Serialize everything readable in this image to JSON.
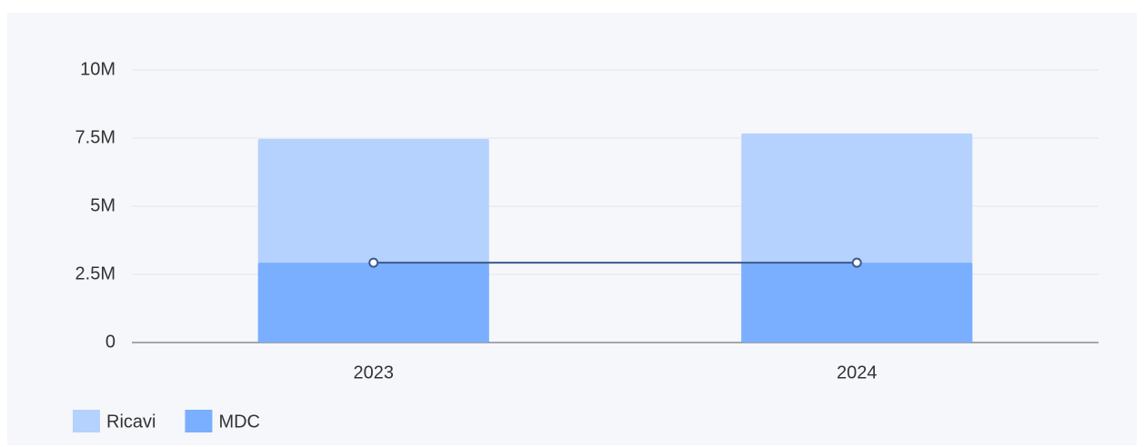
{
  "chart_data": {
    "type": "bar",
    "categories": [
      "2023",
      "2024"
    ],
    "series": [
      {
        "name": "Ricavi",
        "color": "#b5d1fe",
        "values": [
          7470000,
          7670000
        ]
      },
      {
        "name": "MDC",
        "color": "#7aaeff",
        "values": [
          2930000,
          2930000
        ]
      },
      {
        "type": "line",
        "color": "#3b5a8a",
        "values": [
          2930000,
          2930000
        ]
      }
    ],
    "ylim": [
      0,
      10000000
    ],
    "yticks": [
      {
        "value": 0,
        "label": "0"
      },
      {
        "value": 2500000,
        "label": "2.5M"
      },
      {
        "value": 5000000,
        "label": "5M"
      },
      {
        "value": 7500000,
        "label": "7.5M"
      },
      {
        "value": 10000000,
        "label": "10M"
      }
    ],
    "grid": true,
    "legend": "bottom-left"
  }
}
